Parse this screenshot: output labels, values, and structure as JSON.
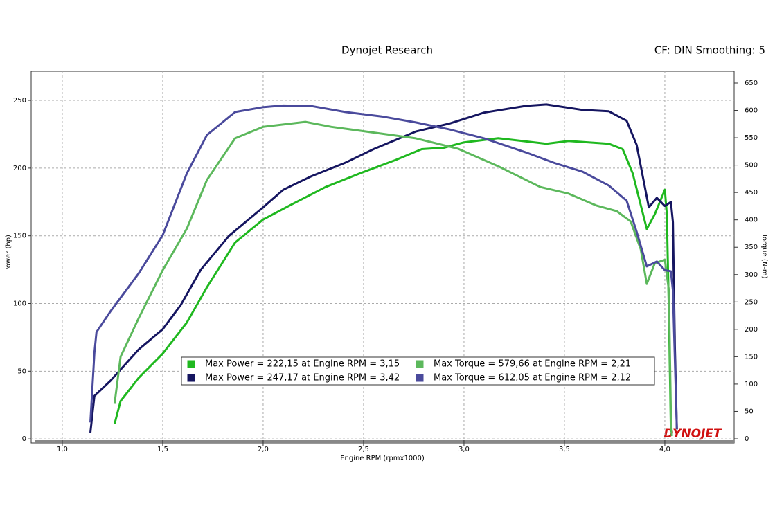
{
  "chart_data": {
    "type": "line",
    "title": "Dynojet Research",
    "subtitle": "CF: DIN Smoothing: 5",
    "x_label": "Engine RPM (rpmx1000)",
    "y_label": "Power (hp)",
    "y2_label": "Torque (N-m)",
    "logo": "DYNOJET",
    "grid": true,
    "xlim": [
      0.845,
      4.345
    ],
    "xticks": [
      {
        "value": 1.0,
        "label": "1,0"
      },
      {
        "value": 1.5,
        "label": "1,5"
      },
      {
        "value": 2.0,
        "label": "2,0"
      },
      {
        "value": 2.5,
        "label": "2,5"
      },
      {
        "value": 3.0,
        "label": "3,0"
      },
      {
        "value": 3.5,
        "label": "3,5"
      },
      {
        "value": 4.0,
        "label": "4,0"
      }
    ],
    "ylim": [
      -3,
      271.5
    ],
    "yticks": [
      0,
      50,
      100,
      150,
      200,
      250
    ],
    "y2lim": [
      -7.6,
      671.5
    ],
    "y2ticks": [
      0,
      50,
      100,
      150,
      200,
      250,
      300,
      350,
      400,
      450,
      500,
      550,
      600,
      650
    ],
    "series": [
      {
        "name": "Max Power = 222,15 at Engine RPM = 3,15",
        "color": "#1fb81f",
        "x": [
          1.26,
          1.29,
          1.38,
          1.5,
          1.62,
          1.72,
          1.86,
          2.0,
          2.14,
          2.31,
          2.48,
          2.66,
          2.79,
          2.9,
          3.0,
          3.17,
          3.41,
          3.52,
          3.72,
          3.79,
          3.84,
          3.91,
          3.95,
          4.0,
          4.01,
          4.02,
          4.03
        ],
        "values": [
          11,
          28,
          45,
          63,
          86,
          112,
          145,
          162,
          173,
          186,
          196,
          206,
          214,
          215,
          219,
          222,
          218,
          220,
          218,
          214,
          196,
          155,
          166,
          184,
          166,
          94,
          5
        ]
      },
      {
        "name": "Max Power = 247,17 at Engine RPM = 3,42",
        "color": "#151560",
        "x": [
          1.14,
          1.16,
          1.24,
          1.38,
          1.5,
          1.59,
          1.69,
          1.83,
          2.0,
          2.1,
          2.24,
          2.41,
          2.55,
          2.76,
          2.93,
          3.1,
          3.31,
          3.41,
          3.59,
          3.72,
          3.81,
          3.86,
          3.92,
          3.96,
          4.0,
          4.03,
          4.04,
          4.05,
          4.06
        ],
        "values": [
          4.6,
          31.7,
          43,
          66,
          81,
          99,
          125,
          150,
          171,
          184,
          194,
          204,
          214,
          227,
          233,
          241,
          246,
          247,
          243,
          242,
          235,
          217,
          171,
          178,
          172,
          175,
          160,
          69,
          7
        ]
      },
      {
        "name": "Max Torque = 579,66 at Engine RPM = 2,21",
        "color": "#5cb85c",
        "axis": "y2",
        "x": [
          1.26,
          1.29,
          1.38,
          1.5,
          1.62,
          1.72,
          1.86,
          2.0,
          2.21,
          2.34,
          2.52,
          2.76,
          2.97,
          3.17,
          3.38,
          3.52,
          3.66,
          3.76,
          3.83,
          3.88,
          3.91,
          3.95,
          4.0,
          4.02,
          4.03,
          4.035
        ],
        "values": [
          64,
          150,
          220,
          308,
          384,
          473,
          549,
          570,
          579,
          570,
          561,
          549,
          530,
          498,
          460,
          448,
          426,
          416,
          397,
          346,
          283,
          321,
          327,
          271,
          43,
          5
        ]
      },
      {
        "name": "Max Torque = 612,05 at Engine RPM = 2,12",
        "color": "#4a4a9c",
        "axis": "y2",
        "x": [
          1.14,
          1.16,
          1.17,
          1.24,
          1.38,
          1.5,
          1.62,
          1.72,
          1.86,
          2.0,
          2.1,
          2.24,
          2.41,
          2.59,
          2.76,
          2.93,
          3.1,
          3.31,
          3.45,
          3.59,
          3.72,
          3.81,
          3.86,
          3.91,
          3.96,
          4.0,
          4.03,
          4.04,
          4.06
        ],
        "values": [
          30,
          157,
          195,
          233,
          302,
          372,
          485,
          555,
          597,
          606,
          609,
          608,
          597,
          589,
          578,
          565,
          549,
          523,
          504,
          488,
          463,
          435,
          378,
          315,
          324,
          308,
          306,
          271,
          18
        ]
      }
    ]
  }
}
